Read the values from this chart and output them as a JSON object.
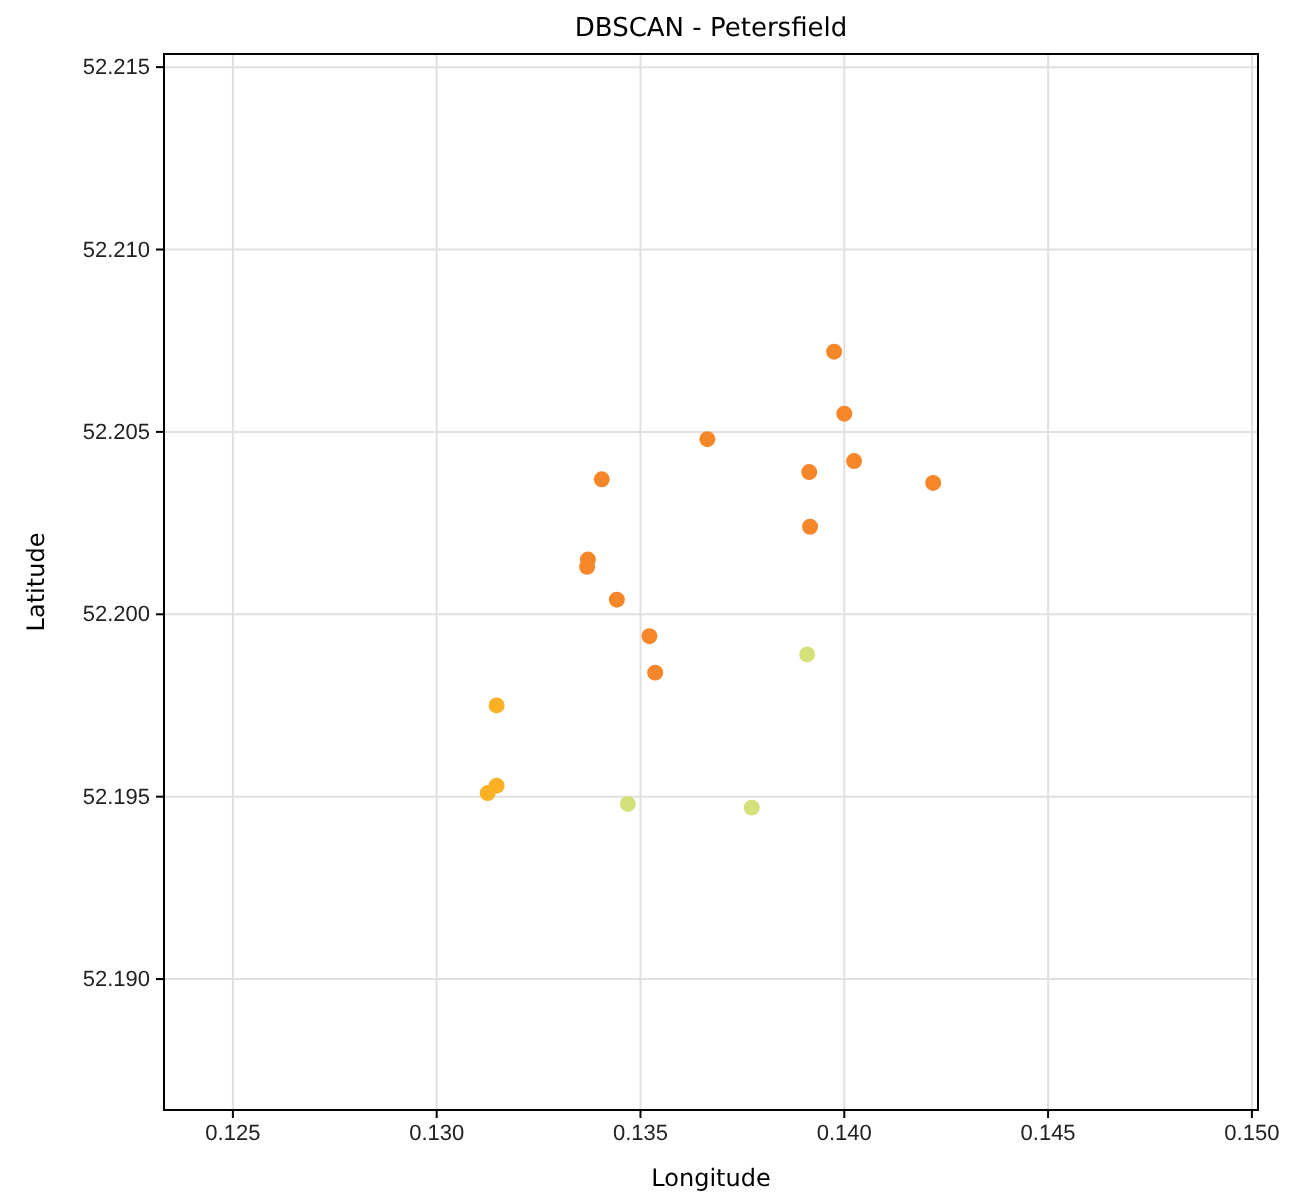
{
  "chart_data": {
    "type": "scatter",
    "title": "DBSCAN - Petersfield",
    "xlabel": "Longitude",
    "ylabel": "Latitude",
    "xlim": [
      0.12331,
      0.15015
    ],
    "ylim": [
      52.18641,
      52.21536
    ],
    "xticks": [
      {
        "value": 0.125,
        "label": "0.125"
      },
      {
        "value": 0.13,
        "label": "0.130"
      },
      {
        "value": 0.135,
        "label": "0.135"
      },
      {
        "value": 0.14,
        "label": "0.140"
      },
      {
        "value": 0.145,
        "label": "0.145"
      },
      {
        "value": 0.15,
        "label": "0.150"
      }
    ],
    "yticks": [
      {
        "value": 52.19,
        "label": "52.190"
      },
      {
        "value": 52.195,
        "label": "52.195"
      },
      {
        "value": 52.2,
        "label": "52.200"
      },
      {
        "value": 52.205,
        "label": "52.205"
      },
      {
        "value": 52.21,
        "label": "52.210"
      },
      {
        "value": 52.215,
        "label": "52.215"
      }
    ],
    "grid": true,
    "marker": "circle",
    "series": [
      {
        "color": "#f5862a",
        "x": [
          0.13975,
          0.14,
          0.13664,
          0.13405,
          0.13914,
          0.14024,
          0.14218,
          0.13916,
          0.13371,
          0.13369,
          0.13442,
          0.13522,
          0.13536
        ],
        "values": [
          52.2072,
          52.2055,
          52.2048,
          52.2037,
          52.2039,
          52.2042,
          52.2036,
          52.2024,
          52.2015,
          52.2013,
          52.2004,
          52.1994,
          52.1984
        ]
      },
      {
        "color": "#fbb123",
        "x": [
          0.13147,
          0.13147,
          0.13125
        ],
        "values": [
          52.1975,
          52.1953,
          52.1951
        ]
      },
      {
        "color": "#d4e07a",
        "x": [
          0.13909,
          0.13469,
          0.13773
        ],
        "values": [
          52.1989,
          52.1948,
          52.1947
        ]
      }
    ]
  }
}
